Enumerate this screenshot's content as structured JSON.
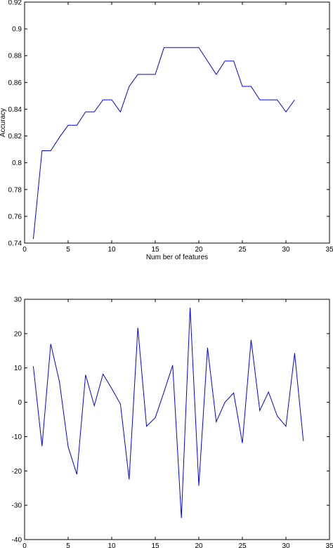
{
  "chart_data": [
    {
      "type": "line",
      "xlabel": "Num ber of features",
      "ylabel": "Accuracy",
      "xlim": [
        0,
        35
      ],
      "ylim": [
        0.74,
        0.92
      ],
      "xticks": [
        "0",
        "5",
        "10",
        "15",
        "20",
        "25",
        "30",
        "35"
      ],
      "yticks": [
        "0.74",
        "0.76",
        "0.78",
        "0.8",
        "0.82",
        "0.84",
        "0.86",
        "0.88",
        "0.9",
        "0.92"
      ],
      "series": [
        {
          "color": "#0000ff",
          "x": [
            1,
            2,
            3,
            4,
            5,
            6,
            7,
            8,
            9,
            10,
            11,
            12,
            13,
            14,
            15,
            16,
            17,
            18,
            19,
            20,
            21,
            22,
            23,
            24,
            25,
            26,
            27,
            28,
            29,
            30,
            31
          ],
          "y": [
            0.743,
            0.809,
            0.809,
            0.819,
            0.828,
            0.828,
            0.838,
            0.838,
            0.847,
            0.847,
            0.838,
            0.857,
            0.866,
            0.866,
            0.866,
            0.886,
            0.886,
            0.886,
            0.886,
            0.886,
            0.876,
            0.866,
            0.876,
            0.876,
            0.857,
            0.857,
            0.847,
            0.847,
            0.847,
            0.838,
            0.847
          ]
        }
      ]
    },
    {
      "type": "line",
      "xlabel": "",
      "ylabel": "",
      "xlim": [
        0,
        35
      ],
      "ylim": [
        -40,
        30
      ],
      "xticks": [
        "0",
        "5",
        "10",
        "15",
        "20",
        "25",
        "30",
        "35"
      ],
      "yticks": [
        "-40",
        "-30",
        "-20",
        "-10",
        "0",
        "10",
        "20",
        "30"
      ],
      "series": [
        {
          "color": "#0000ff",
          "x": [
            1,
            2,
            3,
            4,
            5,
            6,
            7,
            8,
            9,
            10,
            11,
            12,
            13,
            14,
            15,
            16,
            17,
            18,
            19,
            20,
            21,
            22,
            23,
            24,
            25,
            26,
            27,
            28,
            29,
            30,
            31,
            32
          ],
          "y": [
            10.5,
            -12.8,
            17.0,
            6.0,
            -13.0,
            -21.0,
            8.0,
            -1.0,
            8.2,
            4.0,
            -0.5,
            -22.5,
            21.7,
            -7.0,
            -4.5,
            3.0,
            10.8,
            -33.7,
            27.6,
            -24.3,
            15.9,
            -5.7,
            0.0,
            2.7,
            -11.9,
            18.2,
            -2.4,
            3.0,
            -4.0,
            -7.0,
            14.3,
            -11.3
          ]
        }
      ]
    }
  ]
}
